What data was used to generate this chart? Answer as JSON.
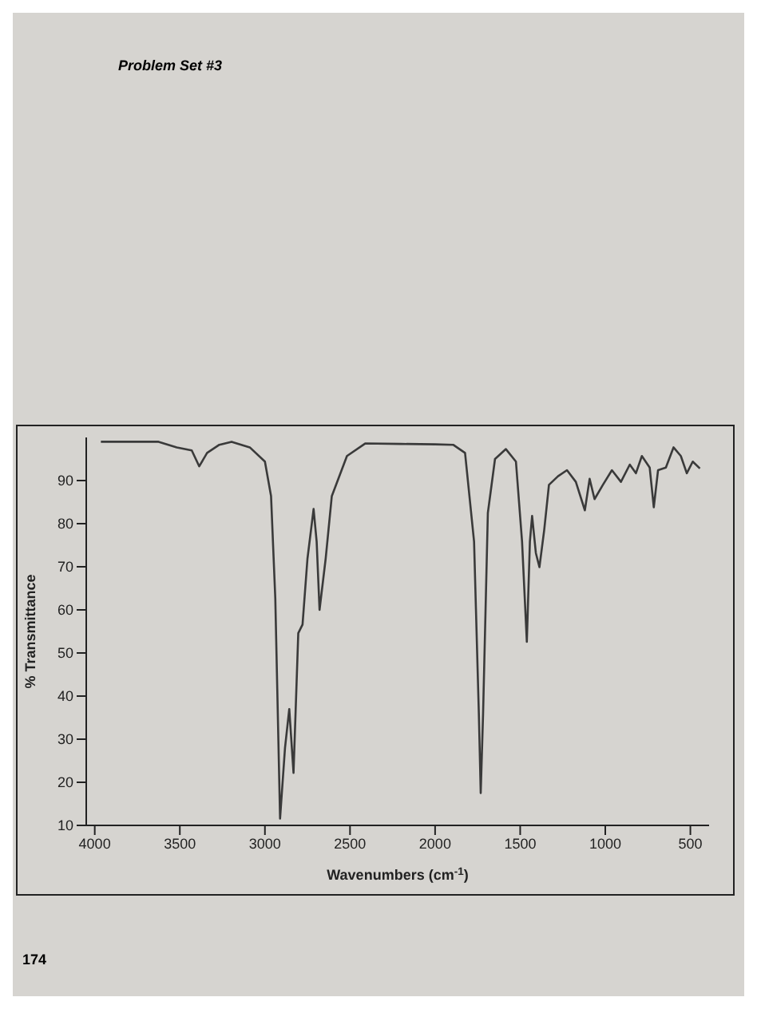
{
  "chart_data": {
    "type": "line",
    "title": "Problem Set #3",
    "xlabel": "Wavenumbers (cm$^{-1}$)",
    "ylabel": "% Transmittance",
    "annotations": [
      "174"
    ],
    "x": [
      3964,
      3625,
      3518,
      3430,
      3386,
      3340,
      3268,
      3196,
      3089,
      3000,
      2964,
      2939,
      2911,
      2882,
      2857,
      2832,
      2804,
      2779,
      2750,
      2714,
      2696,
      2679,
      2643,
      2607,
      2518,
      2411,
      2200,
      2000,
      1894,
      1824,
      1771,
      1743,
      1732,
      1718,
      1690,
      1648,
      1584,
      1525,
      1489,
      1461,
      1443,
      1430,
      1408,
      1387,
      1359,
      1331,
      1278,
      1225,
      1173,
      1120,
      1092,
      1063,
      1014,
      961,
      908,
      856,
      820,
      785,
      739,
      715,
      690,
      644,
      599,
      556,
      521,
      486,
      444
    ],
    "series": [
      {
        "color": "#3a3a3a",
        "values": [
          99,
          99,
          97.7,
          97,
          93.3,
          96.4,
          98.3,
          99,
          97.7,
          94.4,
          86.4,
          62.6,
          11.6,
          28,
          37,
          22.2,
          54.6,
          56.6,
          71.9,
          83.4,
          75.8,
          60,
          71.9,
          86.4,
          95.7,
          98.6,
          98.5,
          98.4,
          98.3,
          96.4,
          75.8,
          36,
          17.5,
          36,
          82.5,
          95,
          97.3,
          94.4,
          75.8,
          52.6,
          75.8,
          81.8,
          73.2,
          69.9,
          78.5,
          89,
          91,
          92.4,
          89.7,
          83.1,
          90.4,
          85.7,
          89,
          92.4,
          89.7,
          93.7,
          91.7,
          95.7,
          93,
          83.8,
          92.4,
          93,
          97.7,
          95.7,
          91.7,
          94.4,
          92.8
        ]
      }
    ],
    "xlim": [
      4050,
      390
    ],
    "xticks": [
      4000,
      3500,
      3000,
      2500,
      2000,
      1500,
      1000,
      500
    ],
    "ylim": [
      10,
      100
    ],
    "yticks": [
      10,
      20,
      30,
      40,
      50,
      60,
      70,
      80,
      90
    ],
    "grid": false,
    "legend": false,
    "marker": "none",
    "line_style": "solid"
  }
}
